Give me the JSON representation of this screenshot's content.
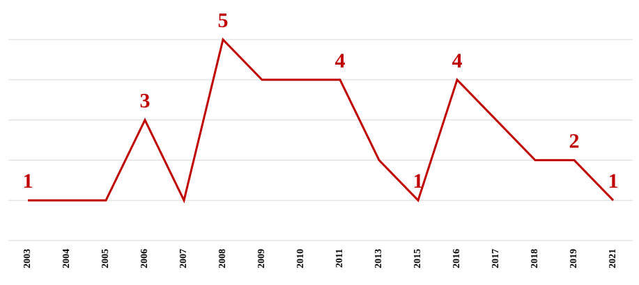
{
  "chart_data": {
    "type": "line",
    "categories": [
      "2003",
      "2004",
      "2005",
      "2006",
      "2007",
      "2008",
      "2009",
      "2010",
      "2011",
      "2013",
      "2015",
      "2016",
      "2017",
      "2018",
      "2019",
      "2021"
    ],
    "series": [
      {
        "name": null,
        "color": "#c00000",
        "values": [
          1,
          1,
          1,
          3,
          1,
          5,
          4,
          4,
          4,
          2,
          1,
          4,
          3,
          2,
          2,
          1
        ],
        "value_labels": [
          "1",
          null,
          null,
          "3",
          null,
          "5",
          null,
          null,
          "4",
          null,
          "1",
          "4",
          null,
          null,
          "2",
          "1"
        ]
      }
    ],
    "ylim": [
      0,
      5
    ],
    "yticks": [
      0,
      1,
      2,
      3,
      4,
      5
    ],
    "grid": true
  }
}
